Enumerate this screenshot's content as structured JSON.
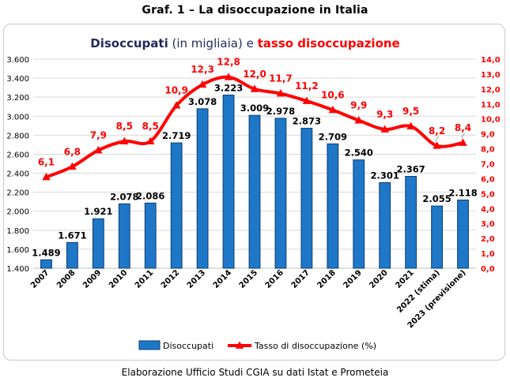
{
  "figure_title": "Graf. 1 – La disoccupazione in Italia",
  "caption": "Elaborazione Ufficio Studi CGIA su dati Istat e Prometeia",
  "colors": {
    "bar": "#1f77c8",
    "bar_edge": "#0b3f73",
    "line": "#ff0000",
    "title_dark": "#1f2a5a"
  },
  "chart_data": {
    "type": "bar",
    "title_parts": [
      {
        "text": "Disoccupati",
        "style": "bold-dark"
      },
      {
        "text": " (in migliaia) ",
        "style": "normal-dark"
      },
      {
        "text": "e ",
        "style": "normal-dark"
      },
      {
        "text": "tasso disoccupazione",
        "style": "bold-red"
      }
    ],
    "categories": [
      "2007",
      "2008",
      "2009",
      "2010",
      "2011",
      "2012",
      "2013",
      "2014",
      "2015",
      "2016",
      "2017",
      "2018",
      "2019",
      "2020",
      "2021",
      "2022 (stima)",
      "2023 (previsione)"
    ],
    "series": [
      {
        "name": "Disoccupati",
        "type": "bar",
        "axis": "left",
        "values": [
          1489,
          1671,
          1921,
          2078,
          2086,
          2719,
          3078,
          3223,
          3009,
          2978,
          2873,
          2709,
          2540,
          2301,
          2367,
          2055,
          2118
        ],
        "labels": [
          "1.489",
          "1.671",
          "1.921",
          "2.078",
          "2.086",
          "2.719",
          "3.078",
          "3.223",
          "3.009",
          "2.978",
          "2.873",
          "2.709",
          "2.540",
          "2.301",
          "2.367",
          "2.055",
          "2.118"
        ]
      },
      {
        "name": "Tasso di disoccupazione (%)",
        "type": "line",
        "axis": "right",
        "values": [
          6.1,
          6.8,
          7.9,
          8.5,
          8.5,
          10.9,
          12.3,
          12.8,
          12.0,
          11.7,
          11.2,
          10.6,
          9.9,
          9.3,
          9.5,
          8.2,
          8.4
        ],
        "labels": [
          "6,1",
          "6,8",
          "7,9",
          "8,5",
          "8,5",
          "10,9",
          "12,3",
          "12,8",
          "12,0",
          "11,7",
          "11,2",
          "10,6",
          "9,9",
          "9,3",
          "9,5",
          "8,2",
          "8,4"
        ]
      }
    ],
    "y_left": {
      "min": 1400,
      "max": 3600,
      "ticks": [
        "1.400",
        "1.600",
        "1.800",
        "2.000",
        "2.200",
        "2.400",
        "2.600",
        "2.800",
        "3.000",
        "3.200",
        "3.400",
        "3.600"
      ]
    },
    "y_right": {
      "min": 0,
      "max": 14,
      "ticks": [
        "0,0",
        "1,0",
        "2,0",
        "3,0",
        "4,0",
        "5,0",
        "6,0",
        "7,0",
        "8,0",
        "9,0",
        "10,0",
        "11,0",
        "12,0",
        "13,0",
        "14,0"
      ]
    },
    "grid": true,
    "legend_position": "bottom"
  }
}
